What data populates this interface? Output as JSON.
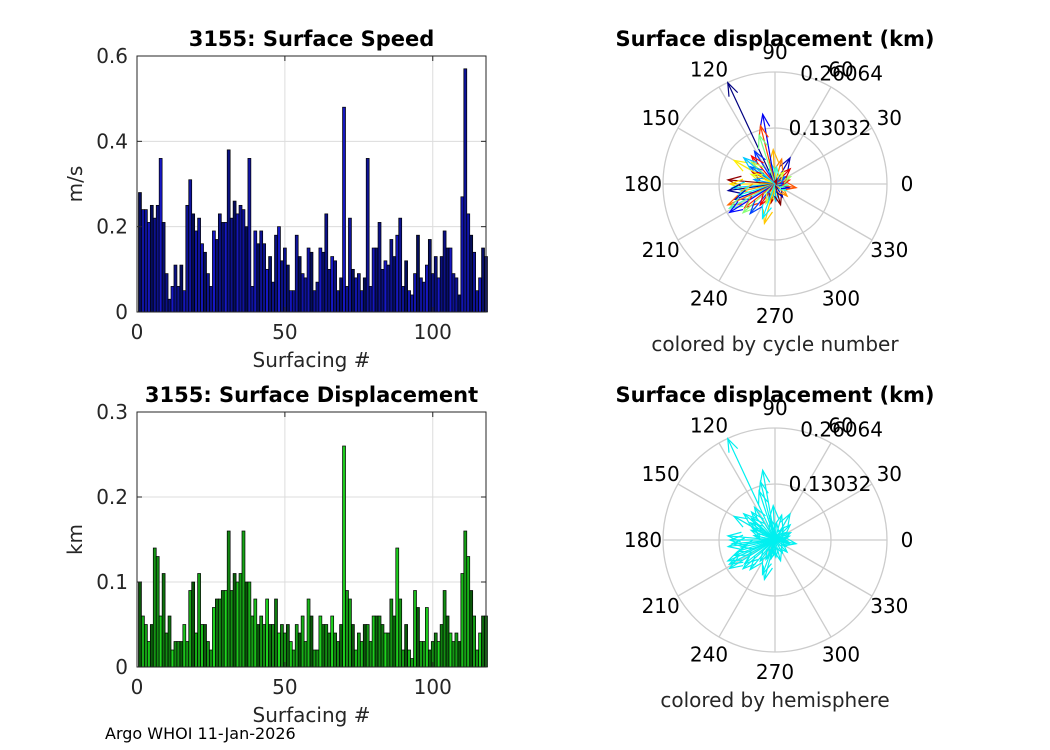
{
  "footer": "Argo WHOI 11-Jan-2026",
  "chart_data": [
    {
      "id": "speed",
      "type": "bar",
      "title": "3155: Surface Speed",
      "xlabel": "Surfacing #",
      "ylabel": "m/s",
      "xlim": [
        0,
        118
      ],
      "ylim": [
        0,
        0.6
      ],
      "xticks": [
        0,
        50,
        100
      ],
      "yticks": [
        0,
        0.2,
        0.4,
        0.6
      ],
      "ytick_labels": [
        "0",
        "0.2",
        "0.4",
        "0.6"
      ],
      "color_low": "#000a40",
      "color_high": "#1a1adf",
      "values": [
        0.28,
        0.24,
        0.24,
        0.21,
        0.25,
        0.22,
        0.25,
        0.36,
        0.21,
        0.09,
        0.03,
        0.06,
        0.11,
        0.06,
        0.11,
        0.05,
        0.25,
        0.31,
        0.23,
        0.19,
        0.22,
        0.16,
        0.14,
        0.09,
        0.06,
        0.19,
        0.17,
        0.23,
        0.21,
        0.21,
        0.38,
        0.22,
        0.26,
        0.23,
        0.25,
        0.24,
        0.2,
        0.36,
        0.06,
        0.19,
        0.16,
        0.19,
        0.16,
        0.1,
        0.13,
        0.07,
        0.18,
        0.2,
        0.12,
        0.15,
        0.11,
        0.05,
        0.05,
        0.18,
        0.13,
        0.09,
        0.08,
        0.15,
        0.14,
        0.05,
        0.07,
        0.15,
        0.14,
        0.23,
        0.1,
        0.13,
        0.12,
        0.05,
        0.08,
        0.48,
        0.06,
        0.22,
        0.1,
        0.08,
        0.09,
        0.05,
        0.08,
        0.36,
        0.06,
        0.15,
        0.15,
        0.21,
        0.1,
        0.12,
        0.11,
        0.17,
        0.13,
        0.18,
        0.22,
        0.06,
        0.12,
        0.05,
        0.04,
        0.09,
        0.18,
        0.08,
        0.07,
        0.11,
        0.17,
        0.09,
        0.13,
        0.08,
        0.13,
        0.19,
        0.15,
        0.15,
        0.09,
        0.08,
        0.04,
        0.27,
        0.57,
        0.23,
        0.18,
        0.14,
        0.05,
        0.08,
        0.15,
        0.13
      ]
    },
    {
      "id": "speed_polar",
      "type": "polar_compass",
      "title": "Surface displacement (km)",
      "caption": "colored by cycle number",
      "rmax": 0.26064,
      "r_labels": [
        "0.13032",
        "0.26064"
      ],
      "angle_labels": [
        "0",
        "30",
        "60",
        "90",
        "120",
        "150",
        "180",
        "210",
        "240",
        "270",
        "300",
        "330"
      ],
      "coloring": "jet",
      "vectors": [
        {
          "angle": 115,
          "r": 0.26
        },
        {
          "angle": 93,
          "r": 0.08
        },
        {
          "angle": 102,
          "r": 0.05
        },
        {
          "angle": 60,
          "r": 0.07
        },
        {
          "angle": 75,
          "r": 0.06
        },
        {
          "angle": 85,
          "r": 0.04
        },
        {
          "angle": 100,
          "r": 0.165
        },
        {
          "angle": 104,
          "r": 0.14
        },
        {
          "angle": 108,
          "r": 0.12
        },
        {
          "angle": 122,
          "r": 0.09
        },
        {
          "angle": 130,
          "r": 0.085
        },
        {
          "angle": 137,
          "r": 0.075
        },
        {
          "angle": 145,
          "r": 0.07
        },
        {
          "angle": 152,
          "r": 0.06
        },
        {
          "angle": 158,
          "r": 0.06
        },
        {
          "angle": 168,
          "r": 0.05
        },
        {
          "angle": 175,
          "r": 0.11
        },
        {
          "angle": 180,
          "r": 0.105
        },
        {
          "angle": 185,
          "r": 0.1
        },
        {
          "angle": 188,
          "r": 0.11
        },
        {
          "angle": 192,
          "r": 0.08
        },
        {
          "angle": 197,
          "r": 0.09
        },
        {
          "angle": 201,
          "r": 0.1
        },
        {
          "angle": 204,
          "r": 0.12
        },
        {
          "angle": 208,
          "r": 0.12
        },
        {
          "angle": 212,
          "r": 0.125
        },
        {
          "angle": 218,
          "r": 0.09
        },
        {
          "angle": 222,
          "r": 0.1
        },
        {
          "angle": 230,
          "r": 0.09
        },
        {
          "angle": 235,
          "r": 0.06
        },
        {
          "angle": 245,
          "r": 0.05
        },
        {
          "angle": 250,
          "r": 0.04
        },
        {
          "angle": 258,
          "r": 0.045
        },
        {
          "angle": 265,
          "r": 0.035
        },
        {
          "angle": 273,
          "r": 0.04
        },
        {
          "angle": 285,
          "r": 0.05
        },
        {
          "angle": 255,
          "r": 0.095
        },
        {
          "angle": 250,
          "r": 0.085
        },
        {
          "angle": 300,
          "r": 0.035
        },
        {
          "angle": 315,
          "r": 0.04
        },
        {
          "angle": 330,
          "r": 0.03
        },
        {
          "angle": 345,
          "r": 0.035
        },
        {
          "angle": 350,
          "r": 0.05
        },
        {
          "angle": 355,
          "r": 0.03
        },
        {
          "angle": 5,
          "r": 0.025
        },
        {
          "angle": 15,
          "r": 0.035
        },
        {
          "angle": 25,
          "r": 0.04
        },
        {
          "angle": 35,
          "r": 0.03
        },
        {
          "angle": 45,
          "r": 0.05
        },
        {
          "angle": 55,
          "r": 0.035
        },
        {
          "angle": 60,
          "r": 0.015
        },
        {
          "angle": 70,
          "r": 0.012
        },
        {
          "angle": 150,
          "r": 0.11
        },
        {
          "angle": 140,
          "r": 0.095
        }
      ]
    },
    {
      "id": "displacement",
      "type": "bar",
      "title": "3155: Surface Displacement",
      "xlabel": "Surfacing #",
      "ylabel": "km",
      "xlim": [
        0,
        118
      ],
      "ylim": [
        0,
        0.3
      ],
      "xticks": [
        0,
        50,
        100
      ],
      "yticks": [
        0,
        0.1,
        0.2,
        0.3
      ],
      "ytick_labels": [
        "0",
        "0.1",
        "0.2",
        "0.3"
      ],
      "color_low": "#053a05",
      "color_high": "#23f023",
      "values": [
        0.1,
        0.06,
        0.05,
        0.03,
        0.05,
        0.14,
        0.13,
        0.06,
        0.11,
        0.04,
        0.06,
        0.02,
        0.03,
        0.03,
        0.03,
        0.05,
        0.03,
        0.09,
        0.1,
        0.04,
        0.11,
        0.05,
        0.05,
        0.03,
        0.02,
        0.07,
        0.08,
        0.08,
        0.09,
        0.09,
        0.16,
        0.09,
        0.11,
        0.1,
        0.11,
        0.16,
        0.1,
        0.1,
        0.06,
        0.08,
        0.05,
        0.06,
        0.05,
        0.08,
        0.05,
        0.05,
        0.08,
        0.04,
        0.05,
        0.04,
        0.05,
        0.03,
        0.02,
        0.05,
        0.04,
        0.06,
        0.03,
        0.08,
        0.06,
        0.02,
        0.02,
        0.06,
        0.05,
        0.05,
        0.04,
        0.06,
        0.04,
        0.03,
        0.05,
        0.26,
        0.09,
        0.08,
        0.05,
        0.02,
        0.04,
        0.03,
        0.05,
        0.05,
        0.03,
        0.06,
        0.06,
        0.06,
        0.05,
        0.04,
        0.04,
        0.08,
        0.06,
        0.14,
        0.08,
        0.02,
        0.05,
        0.02,
        0.01,
        0.09,
        0.07,
        0.03,
        0.03,
        0.07,
        0.02,
        0.03,
        0.04,
        0.03,
        0.05,
        0.09,
        0.06,
        0.04,
        0.03,
        0.04,
        0.03,
        0.11,
        0.16,
        0.13,
        0.09,
        0.06,
        0.02,
        0.04,
        0.06,
        0.06
      ]
    },
    {
      "id": "displacement_polar",
      "type": "polar_compass",
      "title": "Surface displacement (km)",
      "caption": "colored by hemisphere",
      "rmax": 0.26064,
      "r_labels": [
        "0.13032",
        "0.26064"
      ],
      "angle_labels": [
        "0",
        "30",
        "60",
        "90",
        "120",
        "150",
        "180",
        "210",
        "240",
        "270",
        "300",
        "330"
      ],
      "coloring": "#00f0f0",
      "vectors": [
        {
          "angle": 115,
          "r": 0.26
        },
        {
          "angle": 93,
          "r": 0.08
        },
        {
          "angle": 102,
          "r": 0.05
        },
        {
          "angle": 60,
          "r": 0.07
        },
        {
          "angle": 75,
          "r": 0.06
        },
        {
          "angle": 85,
          "r": 0.04
        },
        {
          "angle": 100,
          "r": 0.165
        },
        {
          "angle": 104,
          "r": 0.14
        },
        {
          "angle": 108,
          "r": 0.12
        },
        {
          "angle": 122,
          "r": 0.09
        },
        {
          "angle": 130,
          "r": 0.085
        },
        {
          "angle": 137,
          "r": 0.075
        },
        {
          "angle": 145,
          "r": 0.07
        },
        {
          "angle": 152,
          "r": 0.06
        },
        {
          "angle": 158,
          "r": 0.06
        },
        {
          "angle": 168,
          "r": 0.05
        },
        {
          "angle": 175,
          "r": 0.11
        },
        {
          "angle": 180,
          "r": 0.105
        },
        {
          "angle": 185,
          "r": 0.1
        },
        {
          "angle": 188,
          "r": 0.11
        },
        {
          "angle": 192,
          "r": 0.08
        },
        {
          "angle": 197,
          "r": 0.09
        },
        {
          "angle": 201,
          "r": 0.1
        },
        {
          "angle": 204,
          "r": 0.12
        },
        {
          "angle": 208,
          "r": 0.12
        },
        {
          "angle": 212,
          "r": 0.125
        },
        {
          "angle": 218,
          "r": 0.09
        },
        {
          "angle": 222,
          "r": 0.1
        },
        {
          "angle": 230,
          "r": 0.09
        },
        {
          "angle": 235,
          "r": 0.06
        },
        {
          "angle": 245,
          "r": 0.05
        },
        {
          "angle": 250,
          "r": 0.04
        },
        {
          "angle": 258,
          "r": 0.045
        },
        {
          "angle": 265,
          "r": 0.035
        },
        {
          "angle": 273,
          "r": 0.04
        },
        {
          "angle": 285,
          "r": 0.05
        },
        {
          "angle": 255,
          "r": 0.095
        },
        {
          "angle": 250,
          "r": 0.085
        },
        {
          "angle": 300,
          "r": 0.035
        },
        {
          "angle": 315,
          "r": 0.04
        },
        {
          "angle": 330,
          "r": 0.03
        },
        {
          "angle": 345,
          "r": 0.035
        },
        {
          "angle": 350,
          "r": 0.05
        },
        {
          "angle": 355,
          "r": 0.03
        },
        {
          "angle": 5,
          "r": 0.025
        },
        {
          "angle": 15,
          "r": 0.035
        },
        {
          "angle": 25,
          "r": 0.04
        },
        {
          "angle": 35,
          "r": 0.03
        },
        {
          "angle": 45,
          "r": 0.05
        },
        {
          "angle": 55,
          "r": 0.035
        },
        {
          "angle": 60,
          "r": 0.015
        },
        {
          "angle": 70,
          "r": 0.012
        },
        {
          "angle": 150,
          "r": 0.11
        },
        {
          "angle": 140,
          "r": 0.095
        }
      ]
    }
  ]
}
